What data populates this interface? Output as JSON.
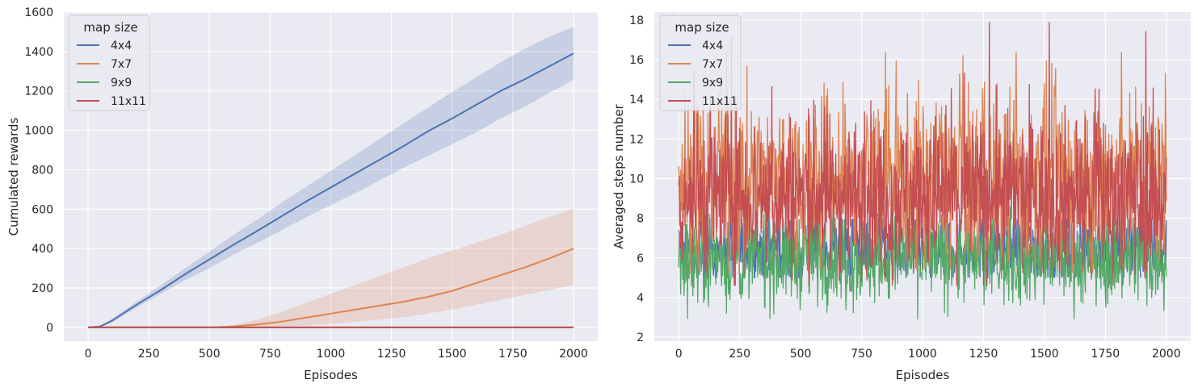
{
  "chart_data": [
    {
      "type": "line",
      "title": "",
      "xlabel": "Episodes",
      "ylabel": "Cumulated rewards",
      "xlim": [
        -100,
        2100
      ],
      "ylim": [
        -70,
        1600
      ],
      "xticks": [
        0,
        250,
        500,
        750,
        1000,
        1250,
        1500,
        1750,
        2000
      ],
      "yticks": [
        0,
        200,
        400,
        600,
        800,
        1000,
        1200,
        1400,
        1600
      ],
      "grid": true,
      "legend": {
        "title": "map size",
        "placement": "top-left"
      },
      "series": [
        {
          "name": "4x4",
          "color": "#4c72b0",
          "x": [
            0,
            50,
            100,
            200,
            300,
            400,
            500,
            600,
            700,
            800,
            900,
            1000,
            1100,
            1200,
            1300,
            1400,
            1500,
            1600,
            1700,
            1800,
            1900,
            2000
          ],
          "y": [
            0,
            5,
            35,
            115,
            190,
            270,
            345,
            420,
            492,
            566,
            640,
            710,
            780,
            850,
            920,
            995,
            1060,
            1130,
            1200,
            1260,
            1325,
            1390
          ],
          "lower": [
            0,
            2,
            25,
            100,
            170,
            240,
            300,
            370,
            430,
            495,
            560,
            620,
            680,
            745,
            810,
            870,
            930,
            990,
            1060,
            1120,
            1190,
            1255
          ],
          "upper": [
            0,
            8,
            45,
            130,
            215,
            300,
            385,
            470,
            550,
            635,
            715,
            795,
            875,
            955,
            1035,
            1115,
            1195,
            1270,
            1345,
            1415,
            1475,
            1525
          ]
        },
        {
          "name": "7x7",
          "color": "#dd8452",
          "x": [
            0,
            500,
            600,
            700,
            800,
            900,
            1000,
            1100,
            1200,
            1300,
            1400,
            1500,
            1600,
            1700,
            1800,
            1900,
            2000
          ],
          "y": [
            0,
            0,
            5,
            15,
            30,
            50,
            70,
            90,
            110,
            130,
            155,
            185,
            225,
            265,
            305,
            350,
            400
          ],
          "lower": [
            0,
            0,
            0,
            2,
            5,
            10,
            18,
            28,
            40,
            52,
            70,
            90,
            115,
            140,
            165,
            190,
            215
          ],
          "upper": [
            0,
            0,
            12,
            40,
            80,
            125,
            170,
            215,
            260,
            305,
            350,
            390,
            430,
            470,
            515,
            560,
            605
          ]
        },
        {
          "name": "9x9",
          "color": "#55a868",
          "x": [
            0,
            2000
          ],
          "y": [
            0,
            0
          ]
        },
        {
          "name": "11x11",
          "color": "#c44e52",
          "x": [
            0,
            2000
          ],
          "y": [
            0,
            0
          ]
        }
      ]
    },
    {
      "type": "line",
      "title": "",
      "xlabel": "Episodes",
      "ylabel": "Averaged steps number",
      "xlim": [
        -100,
        2100
      ],
      "ylim": [
        1.8,
        18.4
      ],
      "xticks": [
        0,
        250,
        500,
        750,
        1000,
        1250,
        1500,
        1750,
        2000
      ],
      "yticks": [
        2,
        4,
        6,
        8,
        10,
        12,
        14,
        16,
        18
      ],
      "grid": true,
      "legend": {
        "title": "map size",
        "placement": "top-left"
      },
      "series": [
        {
          "name": "4x4",
          "color": "#4c72b0",
          "mean": 6.5,
          "spread": 0.9,
          "min": 5.0,
          "max": 8.0
        },
        {
          "name": "7x7",
          "color": "#dd8452",
          "mean": 10.0,
          "spread": 2.2,
          "min": 5.2,
          "max": 16.4
        },
        {
          "name": "9x9",
          "color": "#55a868",
          "mean": 6.0,
          "spread": 1.2,
          "min": 2.6,
          "max": 8.6
        },
        {
          "name": "11x11",
          "color": "#c44e52",
          "mean": 9.2,
          "spread": 2.0,
          "min": 4.6,
          "max": 17.9
        }
      ]
    }
  ]
}
